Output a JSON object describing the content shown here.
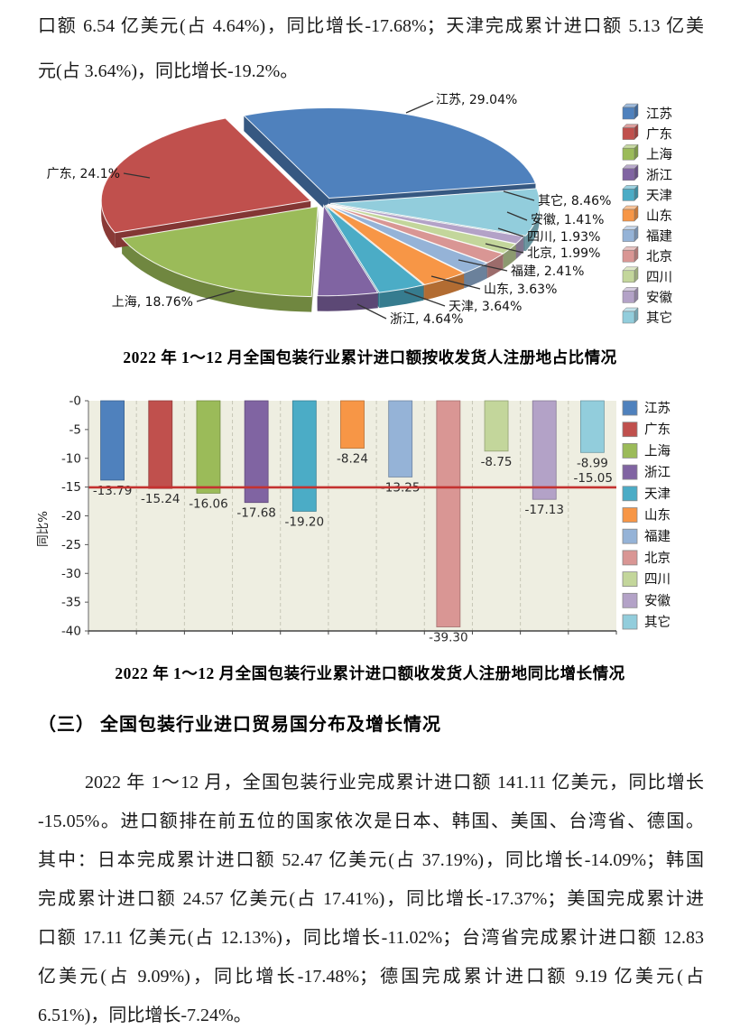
{
  "intro": {
    "lines": [
      "口额 6.54 亿美元(占 4.64%)，同比增长-17.68%；天津完成累计进口额 5.13 亿美",
      "元(占 3.64%)，同比增长-19.2%。"
    ]
  },
  "section": {
    "heading": "（三） 全国包装行业进口贸易国分布及增长情况"
  },
  "body": {
    "lines": [
      "2022 年 1～12 月，全国包装行业完成累计进口额 141.11 亿美元，同比增长",
      "-15.05%。进口额排在前五位的国家依次是日本、韩国、美国、台湾省、德国。",
      "其中：日本完成累计进口额 52.47 亿美元(占 37.19%)，同比增长-14.09%；韩国",
      "完成累计进口额 24.57 亿美元(占 17.41%)，同比增长-17.37%；美国完成累计进",
      "口额 17.11 亿美元(占 12.13%)，同比增长-11.02%；台湾省完成累计进口额 12.83",
      "亿美元(占  9.09%)，同比增长-17.48%；德国完成累计进口额 9.19 亿美元(占",
      "6.51%)，同比增长-7.24%。"
    ]
  },
  "chart_data": [
    {
      "type": "pie",
      "variant": "3d-exploded",
      "title": "2022 年 1～12 月全国包装行业累计进口额按收发货人注册地占比情况",
      "categories": [
        "江苏",
        "广东",
        "上海",
        "浙江",
        "天津",
        "山东",
        "福建",
        "北京",
        "四川",
        "安徽",
        "其它"
      ],
      "values": [
        29.04,
        24.1,
        18.76,
        4.64,
        3.64,
        3.63,
        2.41,
        1.99,
        1.93,
        1.41,
        8.46
      ],
      "labels": [
        "江苏, 29.04%",
        "广东, 24.1%",
        "上海, 18.76%",
        "浙江, 4.64%",
        "天津, 3.64%",
        "山东, 3.63%",
        "福建, 2.41%",
        "北京, 1.99%",
        "四川, 1.93%",
        "安徽, 1.41%",
        "其它, 8.46%"
      ],
      "colors": [
        "#4f81bd",
        "#c0504d",
        "#9bbb59",
        "#8064a2",
        "#4bacc6",
        "#f79646",
        "#95b3d7",
        "#d99694",
        "#c3d69b",
        "#b3a2c7",
        "#92cddc"
      ],
      "legend_position": "right"
    },
    {
      "type": "bar",
      "title": "2022 年 1～12 月全国包装行业累计进口额收发货人注册地同比增长情况",
      "categories": [
        "江苏",
        "广东",
        "上海",
        "浙江",
        "天津",
        "山东",
        "福建",
        "北京",
        "四川",
        "安徽",
        "其它"
      ],
      "values": [
        -13.79,
        -15.24,
        -16.06,
        -17.68,
        -19.2,
        -8.24,
        -13.25,
        -39.3,
        -8.75,
        -17.13,
        -8.99
      ],
      "bar_labels": [
        "-13.79",
        "-15.24",
        "-16.06",
        "-17.68",
        "-19.20",
        "-8.24",
        "-13.25",
        "-39.30",
        "-8.75",
        "-17.13",
        "-8.99"
      ],
      "colors": [
        "#4f81bd",
        "#c0504d",
        "#9bbb59",
        "#8064a2",
        "#4bacc6",
        "#f79646",
        "#95b3d7",
        "#d99694",
        "#c3d69b",
        "#b3a2c7",
        "#92cddc"
      ],
      "ylabel": "同比%",
      "yticks": [
        "-0",
        "-5",
        "-10",
        "-15",
        "-20",
        "-25",
        "-30",
        "-35",
        "-40"
      ],
      "ylim": [
        -40,
        0
      ],
      "grid": "vertical-dashed",
      "plot_bg": "#eeeee1",
      "avg_line": {
        "value": -15.05,
        "label": "-15.05",
        "color": "#c43230"
      },
      "legend_position": "right"
    }
  ]
}
